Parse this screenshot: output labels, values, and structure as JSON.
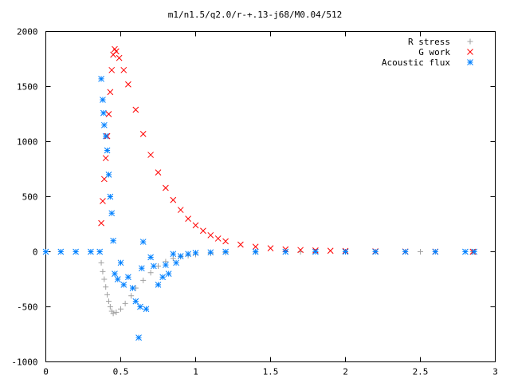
{
  "chart_data": {
    "type": "scatter",
    "title": "m1/n1.5/q2.0/r-+.13-j68/M0.04/512",
    "xlabel": "",
    "ylabel": "",
    "xlim": [
      0,
      3
    ],
    "ylim": [
      -1000,
      2000
    ],
    "xticks": [
      {
        "value": 0,
        "label": "0"
      },
      {
        "value": 0.5,
        "label": "0.5"
      },
      {
        "value": 1,
        "label": "1"
      },
      {
        "value": 1.5,
        "label": "1.5"
      },
      {
        "value": 2,
        "label": "2"
      },
      {
        "value": 2.5,
        "label": "2.5"
      },
      {
        "value": 3,
        "label": "3"
      }
    ],
    "yticks": [
      {
        "value": -1000,
        "label": "-1000"
      },
      {
        "value": -500,
        "label": "-500"
      },
      {
        "value": 0,
        "label": "0"
      },
      {
        "value": 500,
        "label": "500"
      },
      {
        "value": 1000,
        "label": "1000"
      },
      {
        "value": 1500,
        "label": "1500"
      },
      {
        "value": 2000,
        "label": "2000"
      }
    ],
    "grid": false,
    "legend_position": "top-right",
    "series": [
      {
        "name": "R stress",
        "marker": "plus",
        "color": "#a0a0a0",
        "points": [
          [
            0.37,
            -100
          ],
          [
            0.38,
            -180
          ],
          [
            0.39,
            -250
          ],
          [
            0.4,
            -320
          ],
          [
            0.41,
            -390
          ],
          [
            0.42,
            -450
          ],
          [
            0.43,
            -500
          ],
          [
            0.44,
            -540
          ],
          [
            0.45,
            -560
          ],
          [
            0.47,
            -550
          ],
          [
            0.5,
            -520
          ],
          [
            0.53,
            -470
          ],
          [
            0.57,
            -400
          ],
          [
            0.6,
            -330
          ],
          [
            0.65,
            -260
          ],
          [
            0.7,
            -190
          ],
          [
            0.75,
            -130
          ],
          [
            0.8,
            -90
          ],
          [
            0.85,
            -60
          ],
          [
            0.9,
            -45
          ],
          [
            0.95,
            -35
          ],
          [
            1.0,
            -25
          ],
          [
            1.1,
            -15
          ],
          [
            1.2,
            -8
          ],
          [
            1.4,
            -3
          ],
          [
            1.7,
            -1
          ],
          [
            2.0,
            0
          ],
          [
            2.5,
            0
          ],
          [
            2.85,
            0
          ]
        ]
      },
      {
        "name": "G work",
        "marker": "cross",
        "color": "#ff0000",
        "points": [
          [
            0.37,
            260
          ],
          [
            0.38,
            460
          ],
          [
            0.39,
            660
          ],
          [
            0.4,
            850
          ],
          [
            0.41,
            1050
          ],
          [
            0.42,
            1250
          ],
          [
            0.43,
            1450
          ],
          [
            0.44,
            1650
          ],
          [
            0.45,
            1790
          ],
          [
            0.46,
            1840
          ],
          [
            0.47,
            1820
          ],
          [
            0.49,
            1760
          ],
          [
            0.52,
            1650
          ],
          [
            0.55,
            1520
          ],
          [
            0.6,
            1290
          ],
          [
            0.65,
            1070
          ],
          [
            0.7,
            880
          ],
          [
            0.75,
            720
          ],
          [
            0.8,
            580
          ],
          [
            0.85,
            470
          ],
          [
            0.9,
            380
          ],
          [
            0.95,
            300
          ],
          [
            1.0,
            240
          ],
          [
            1.05,
            190
          ],
          [
            1.1,
            150
          ],
          [
            1.15,
            120
          ],
          [
            1.2,
            95
          ],
          [
            1.3,
            65
          ],
          [
            1.4,
            45
          ],
          [
            1.5,
            32
          ],
          [
            1.6,
            22
          ],
          [
            1.7,
            16
          ],
          [
            1.8,
            12
          ],
          [
            1.9,
            9
          ],
          [
            2.0,
            7
          ],
          [
            2.2,
            4
          ],
          [
            2.4,
            2
          ],
          [
            2.6,
            1
          ],
          [
            2.85,
            0
          ]
        ]
      },
      {
        "name": "Acoustic flux",
        "marker": "star",
        "color": "#0080ff",
        "points": [
          [
            0.0,
            0
          ],
          [
            0.1,
            0
          ],
          [
            0.2,
            0
          ],
          [
            0.3,
            0
          ],
          [
            0.36,
            0
          ],
          [
            0.37,
            1570
          ],
          [
            0.38,
            1380
          ],
          [
            0.385,
            1260
          ],
          [
            0.39,
            1150
          ],
          [
            0.4,
            1050
          ],
          [
            0.41,
            920
          ],
          [
            0.42,
            700
          ],
          [
            0.43,
            500
          ],
          [
            0.44,
            350
          ],
          [
            0.45,
            100
          ],
          [
            0.46,
            -200
          ],
          [
            0.48,
            -250
          ],
          [
            0.5,
            -100
          ],
          [
            0.52,
            -300
          ],
          [
            0.55,
            -230
          ],
          [
            0.58,
            -330
          ],
          [
            0.6,
            -450
          ],
          [
            0.62,
            -780
          ],
          [
            0.63,
            -500
          ],
          [
            0.64,
            -150
          ],
          [
            0.65,
            90
          ],
          [
            0.67,
            -520
          ],
          [
            0.7,
            -50
          ],
          [
            0.72,
            -130
          ],
          [
            0.75,
            -300
          ],
          [
            0.78,
            -230
          ],
          [
            0.8,
            -120
          ],
          [
            0.82,
            -200
          ],
          [
            0.85,
            -20
          ],
          [
            0.87,
            -100
          ],
          [
            0.9,
            -40
          ],
          [
            0.95,
            -20
          ],
          [
            1.0,
            -10
          ],
          [
            1.1,
            -5
          ],
          [
            1.2,
            0
          ],
          [
            1.4,
            0
          ],
          [
            1.6,
            0
          ],
          [
            1.8,
            0
          ],
          [
            2.0,
            0
          ],
          [
            2.2,
            0
          ],
          [
            2.4,
            0
          ],
          [
            2.6,
            0
          ],
          [
            2.8,
            0
          ],
          [
            2.86,
            0
          ]
        ]
      }
    ]
  }
}
